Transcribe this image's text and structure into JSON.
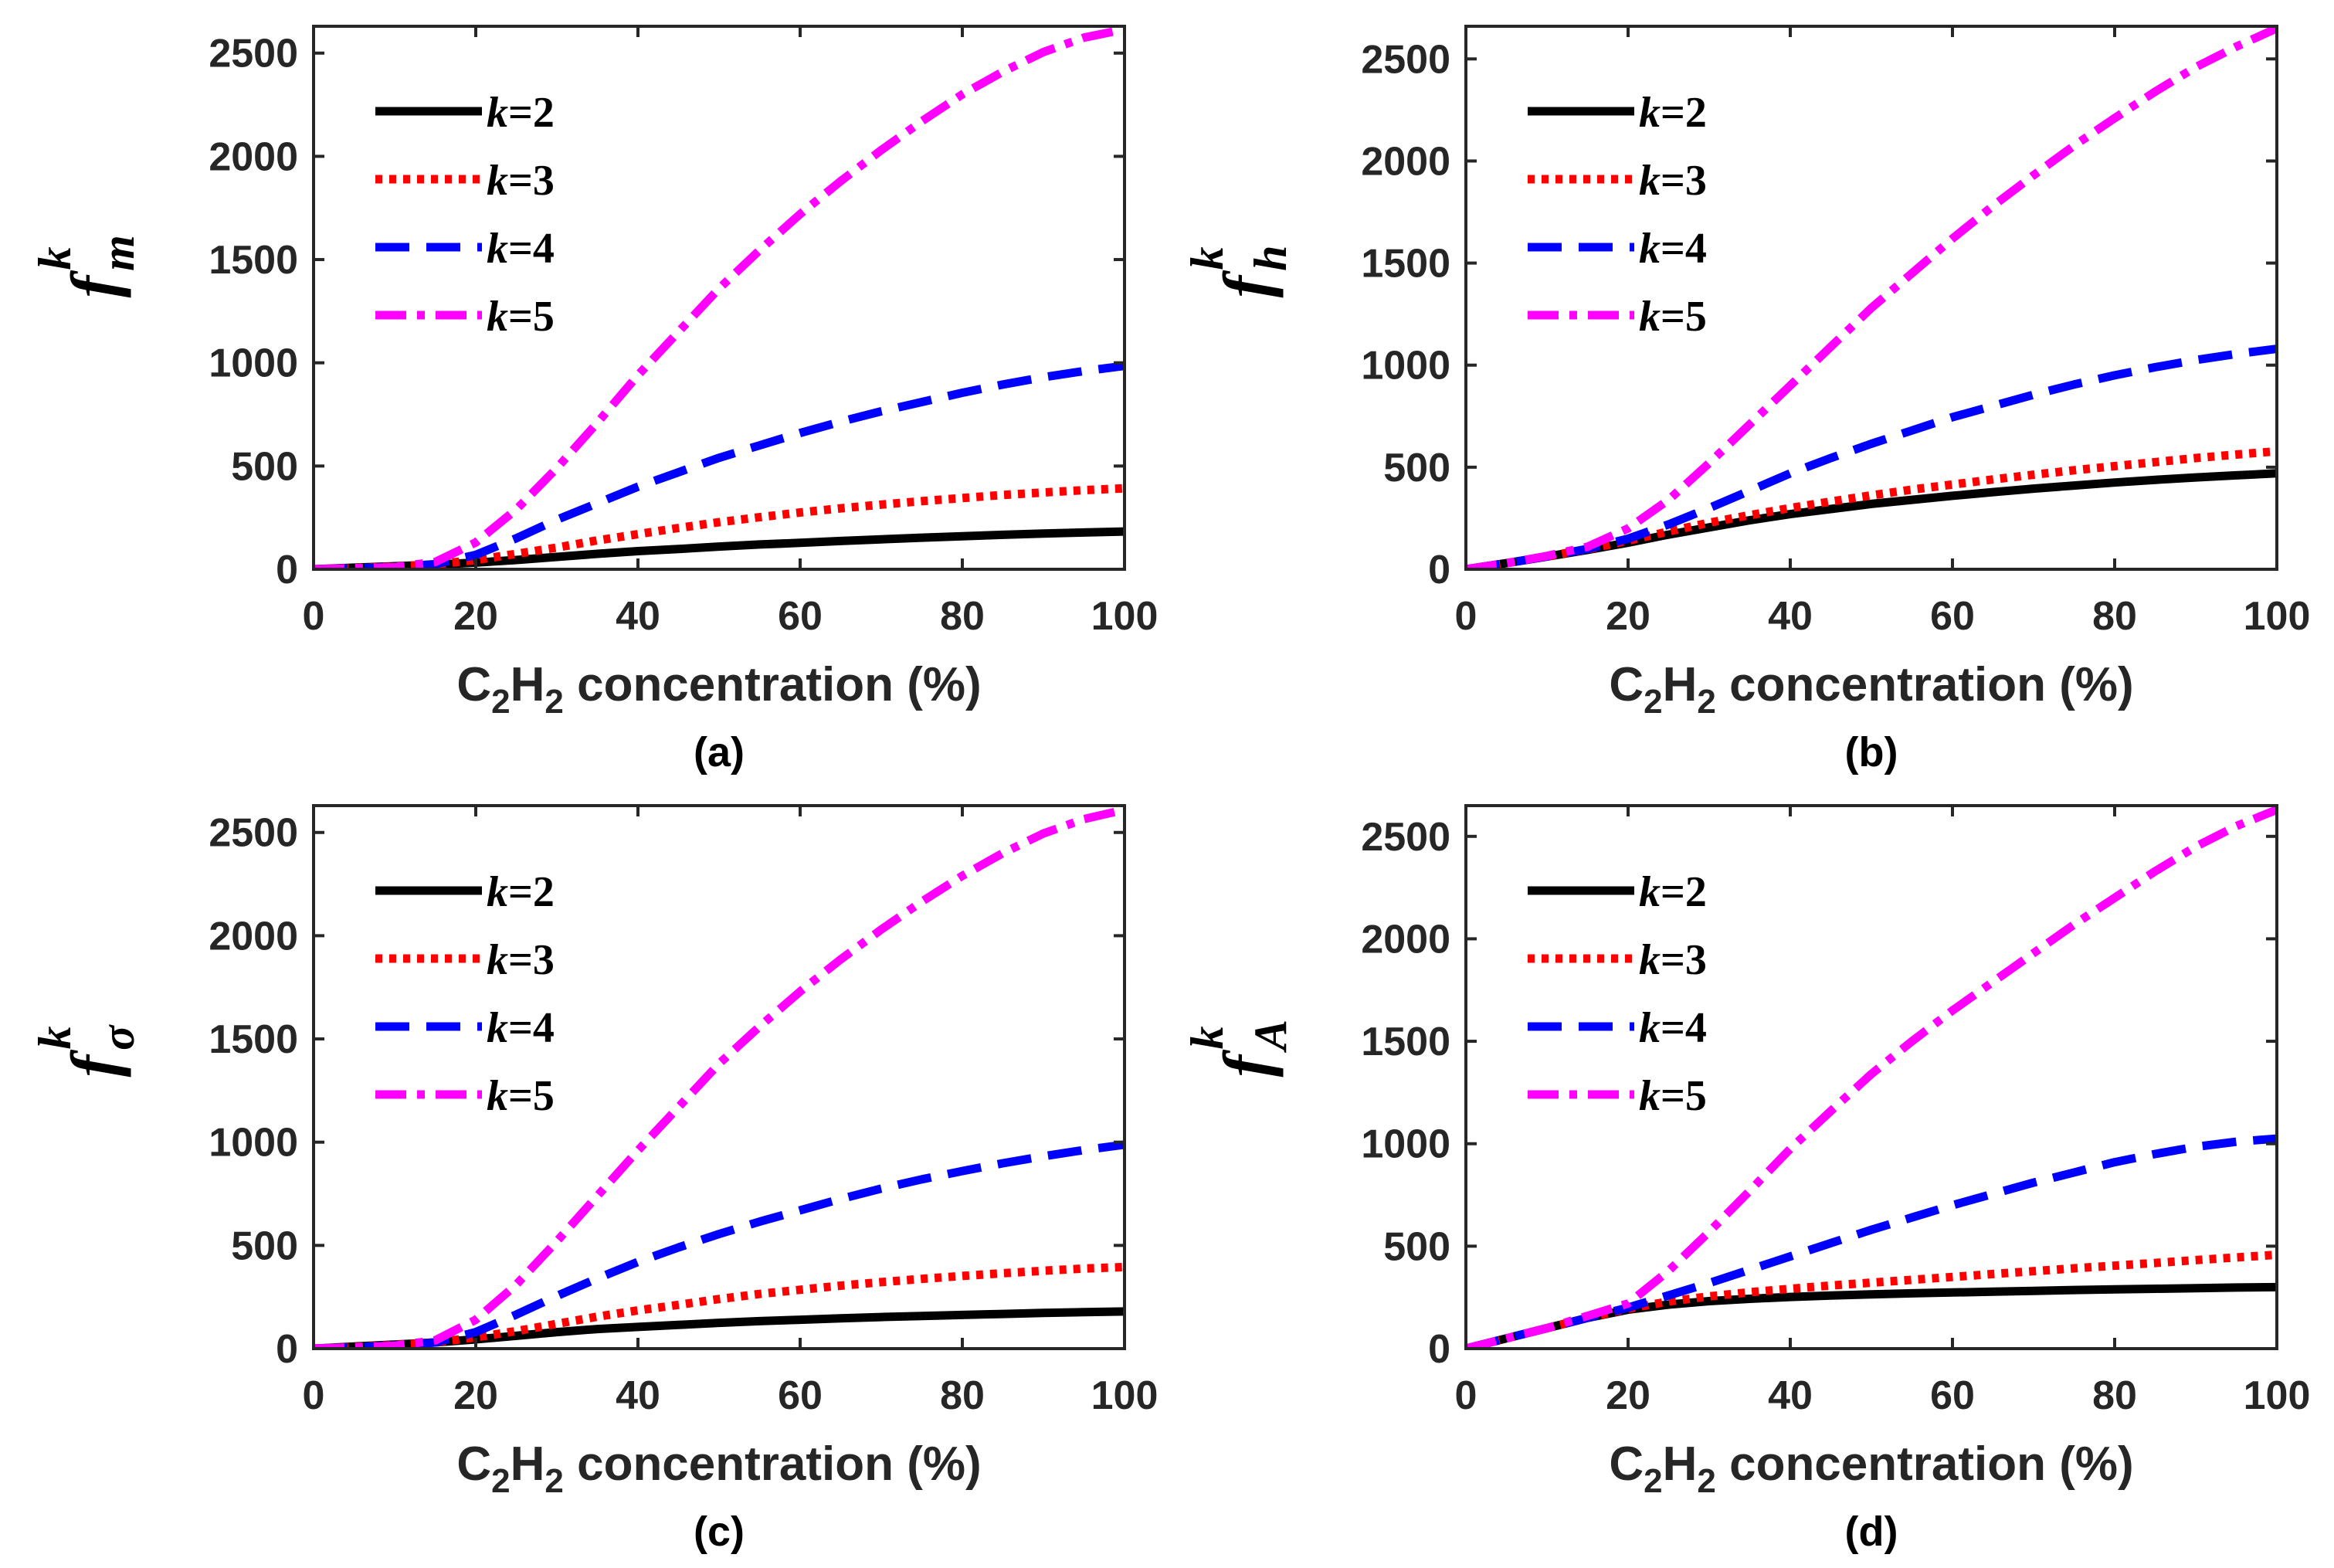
{
  "chart_data": [
    {
      "type": "line",
      "panel": "(a)",
      "ylabel": {
        "base": "f",
        "sup": "k",
        "sub": "m"
      },
      "xlabel": {
        "pre": "C",
        "sub1": "2",
        "mid": "H",
        "sub2": "2",
        "post": " concentration (%)"
      },
      "caption": "(a)",
      "xlim": [
        0,
        100
      ],
      "ylim": [
        0,
        2630
      ],
      "xticks": [
        "0",
        "20",
        "40",
        "60",
        "80",
        "100"
      ],
      "yticks": [
        "0",
        "500",
        "1000",
        "1500",
        "2000",
        "2500"
      ],
      "legend_position": "top-left",
      "x": [
        0,
        5,
        10,
        15,
        20,
        25,
        30,
        35,
        40,
        45,
        50,
        55,
        60,
        65,
        70,
        75,
        80,
        85,
        90,
        95,
        100
      ],
      "series": [
        {
          "name": "k=2",
          "label_k": "k",
          "label_val": "=2",
          "color": "#000000",
          "style": "solid",
          "values": [
            0,
            8,
            15,
            22,
            32,
            45,
            60,
            75,
            88,
            98,
            110,
            120,
            128,
            137,
            145,
            153,
            160,
            167,
            173,
            178,
            183
          ]
        },
        {
          "name": "k=3",
          "label_k": "k",
          "label_val": "=3",
          "color": "#ff0000",
          "style": "dotted",
          "values": [
            0,
            6,
            13,
            24,
            45,
            75,
            105,
            140,
            170,
            200,
            228,
            252,
            275,
            295,
            313,
            330,
            345,
            360,
            372,
            383,
            392
          ]
        },
        {
          "name": "k=4",
          "label_k": "k",
          "label_val": "=4",
          "color": "#0000ff",
          "style": "dashed",
          "values": [
            0,
            5,
            10,
            25,
            70,
            150,
            240,
            320,
            400,
            470,
            540,
            600,
            660,
            715,
            765,
            810,
            855,
            895,
            930,
            960,
            985
          ]
        },
        {
          "name": "k=5",
          "label_k": "k",
          "label_val": "=5",
          "color": "#ff00ff",
          "style": "dashdot",
          "values": [
            0,
            5,
            10,
            35,
            130,
            290,
            490,
            710,
            940,
            1150,
            1360,
            1545,
            1720,
            1880,
            2030,
            2170,
            2300,
            2410,
            2505,
            2575,
            2615
          ]
        }
      ]
    },
    {
      "type": "line",
      "panel": "(b)",
      "ylabel": {
        "base": "f",
        "sup": "k",
        "sub": "h"
      },
      "xlabel": {
        "pre": "C",
        "sub1": "2",
        "mid": "H",
        "sub2": "2",
        "post": " concentration (%)"
      },
      "caption": "(b)",
      "xlim": [
        0,
        100
      ],
      "ylim": [
        0,
        2660
      ],
      "xticks": [
        "0",
        "20",
        "40",
        "60",
        "80",
        "100"
      ],
      "yticks": [
        "0",
        "500",
        "1000",
        "1500",
        "2000",
        "2500"
      ],
      "legend_position": "top-left",
      "x": [
        0,
        5,
        10,
        15,
        20,
        25,
        30,
        35,
        40,
        45,
        50,
        55,
        60,
        65,
        70,
        75,
        80,
        85,
        90,
        95,
        100
      ],
      "series": [
        {
          "name": "k=2",
          "label_k": "k",
          "label_val": "=2",
          "color": "#000000",
          "style": "solid",
          "values": [
            0,
            30,
            62,
            95,
            130,
            170,
            205,
            240,
            270,
            295,
            320,
            340,
            360,
            378,
            395,
            410,
            425,
            438,
            450,
            460,
            470
          ]
        },
        {
          "name": "k=3",
          "label_k": "k",
          "label_val": "=3",
          "color": "#ff0000",
          "style": "dotted",
          "values": [
            0,
            30,
            63,
            98,
            140,
            185,
            228,
            265,
            300,
            332,
            362,
            390,
            415,
            440,
            463,
            485,
            505,
            525,
            545,
            562,
            578
          ]
        },
        {
          "name": "k=4",
          "label_k": "k",
          "label_val": "=4",
          "color": "#0000ff",
          "style": "dashed",
          "values": [
            0,
            30,
            63,
            100,
            150,
            220,
            300,
            385,
            470,
            545,
            615,
            680,
            745,
            800,
            855,
            905,
            950,
            990,
            1025,
            1055,
            1080
          ]
        },
        {
          "name": "k=5",
          "label_k": "k",
          "label_val": "=5",
          "color": "#ff00ff",
          "style": "dashdot",
          "values": [
            0,
            30,
            65,
            110,
            200,
            340,
            520,
            710,
            900,
            1090,
            1280,
            1450,
            1620,
            1780,
            1930,
            2075,
            2210,
            2340,
            2460,
            2560,
            2650
          ]
        }
      ]
    },
    {
      "type": "line",
      "panel": "(c)",
      "ylabel": {
        "base": "f",
        "sup": "k",
        "sub": "σ"
      },
      "xlabel": {
        "pre": "C",
        "sub1": "2",
        "mid": "H",
        "sub2": "2",
        "post": " concentration (%)"
      },
      "caption": "(c)",
      "xlim": [
        0,
        100
      ],
      "ylim": [
        0,
        2630
      ],
      "xticks": [
        "0",
        "20",
        "40",
        "60",
        "80",
        "100"
      ],
      "yticks": [
        "0",
        "500",
        "1000",
        "1500",
        "2000",
        "2500"
      ],
      "legend_position": "top-left",
      "x": [
        0,
        5,
        10,
        15,
        20,
        25,
        30,
        35,
        40,
        45,
        50,
        55,
        60,
        65,
        70,
        75,
        80,
        85,
        90,
        95,
        100
      ],
      "series": [
        {
          "name": "k=2",
          "label_k": "k",
          "label_val": "=2",
          "color": "#000000",
          "style": "solid",
          "values": [
            0,
            10,
            20,
            30,
            45,
            62,
            80,
            95,
            105,
            115,
            125,
            133,
            140,
            147,
            153,
            158,
            163,
            168,
            173,
            177,
            180
          ]
        },
        {
          "name": "k=3",
          "label_k": "k",
          "label_val": "=3",
          "color": "#ff0000",
          "style": "dotted",
          "values": [
            0,
            8,
            18,
            30,
            55,
            85,
            120,
            155,
            185,
            212,
            240,
            265,
            285,
            305,
            322,
            338,
            352,
            365,
            377,
            388,
            395
          ]
        },
        {
          "name": "k=4",
          "label_k": "k",
          "label_val": "=4",
          "color": "#0000ff",
          "style": "dashed",
          "values": [
            0,
            6,
            15,
            30,
            80,
            165,
            255,
            340,
            420,
            490,
            555,
            615,
            670,
            725,
            775,
            820,
            860,
            898,
            932,
            962,
            988
          ]
        },
        {
          "name": "k=5",
          "label_k": "k",
          "label_val": "=5",
          "color": "#ff00ff",
          "style": "dashdot",
          "values": [
            0,
            6,
            14,
            40,
            140,
            310,
            520,
            740,
            960,
            1170,
            1380,
            1560,
            1730,
            1885,
            2030,
            2165,
            2290,
            2400,
            2495,
            2565,
            2610
          ]
        }
      ]
    },
    {
      "type": "line",
      "panel": "(d)",
      "ylabel": {
        "base": "f",
        "sup": "k",
        "sub": "A"
      },
      "xlabel": {
        "pre": "C",
        "sub1": "2",
        "mid": "H",
        "sub2": "2",
        "post": " concentration (%)"
      },
      "caption": "(d)",
      "xlim": [
        0,
        100
      ],
      "ylim": [
        0,
        2650
      ],
      "xticks": [
        "0",
        "20",
        "40",
        "60",
        "80",
        "100"
      ],
      "yticks": [
        "0",
        "500",
        "1000",
        "1500",
        "2000",
        "2500"
      ],
      "legend_position": "top-left",
      "x": [
        0,
        5,
        10,
        15,
        20,
        25,
        30,
        35,
        40,
        45,
        50,
        55,
        60,
        65,
        70,
        75,
        80,
        85,
        90,
        95,
        100
      ],
      "series": [
        {
          "name": "k=2",
          "label_k": "k",
          "label_val": "=2",
          "color": "#000000",
          "style": "solid",
          "values": [
            0,
            50,
            100,
            150,
            190,
            215,
            232,
            243,
            252,
            259,
            265,
            270,
            274,
            278,
            282,
            286,
            289,
            292,
            295,
            298,
            300
          ]
        },
        {
          "name": "k=3",
          "label_k": "k",
          "label_val": "=3",
          "color": "#ff0000",
          "style": "dotted",
          "values": [
            0,
            50,
            100,
            150,
            195,
            230,
            255,
            275,
            292,
            308,
            322,
            336,
            350,
            364,
            378,
            392,
            405,
            418,
            432,
            445,
            458
          ]
        },
        {
          "name": "k=4",
          "label_k": "k",
          "label_val": "=4",
          "color": "#0000ff",
          "style": "dashed",
          "values": [
            0,
            50,
            100,
            150,
            200,
            260,
            320,
            385,
            450,
            515,
            580,
            640,
            700,
            755,
            810,
            860,
            910,
            950,
            985,
            1010,
            1025
          ]
        },
        {
          "name": "k=5",
          "label_k": "k",
          "label_val": "=5",
          "color": "#ff00ff",
          "style": "dashdot",
          "values": [
            0,
            50,
            100,
            160,
            220,
            380,
            570,
            770,
            975,
            1160,
            1340,
            1500,
            1650,
            1790,
            1930,
            2070,
            2200,
            2330,
            2450,
            2550,
            2630
          ]
        }
      ]
    }
  ]
}
